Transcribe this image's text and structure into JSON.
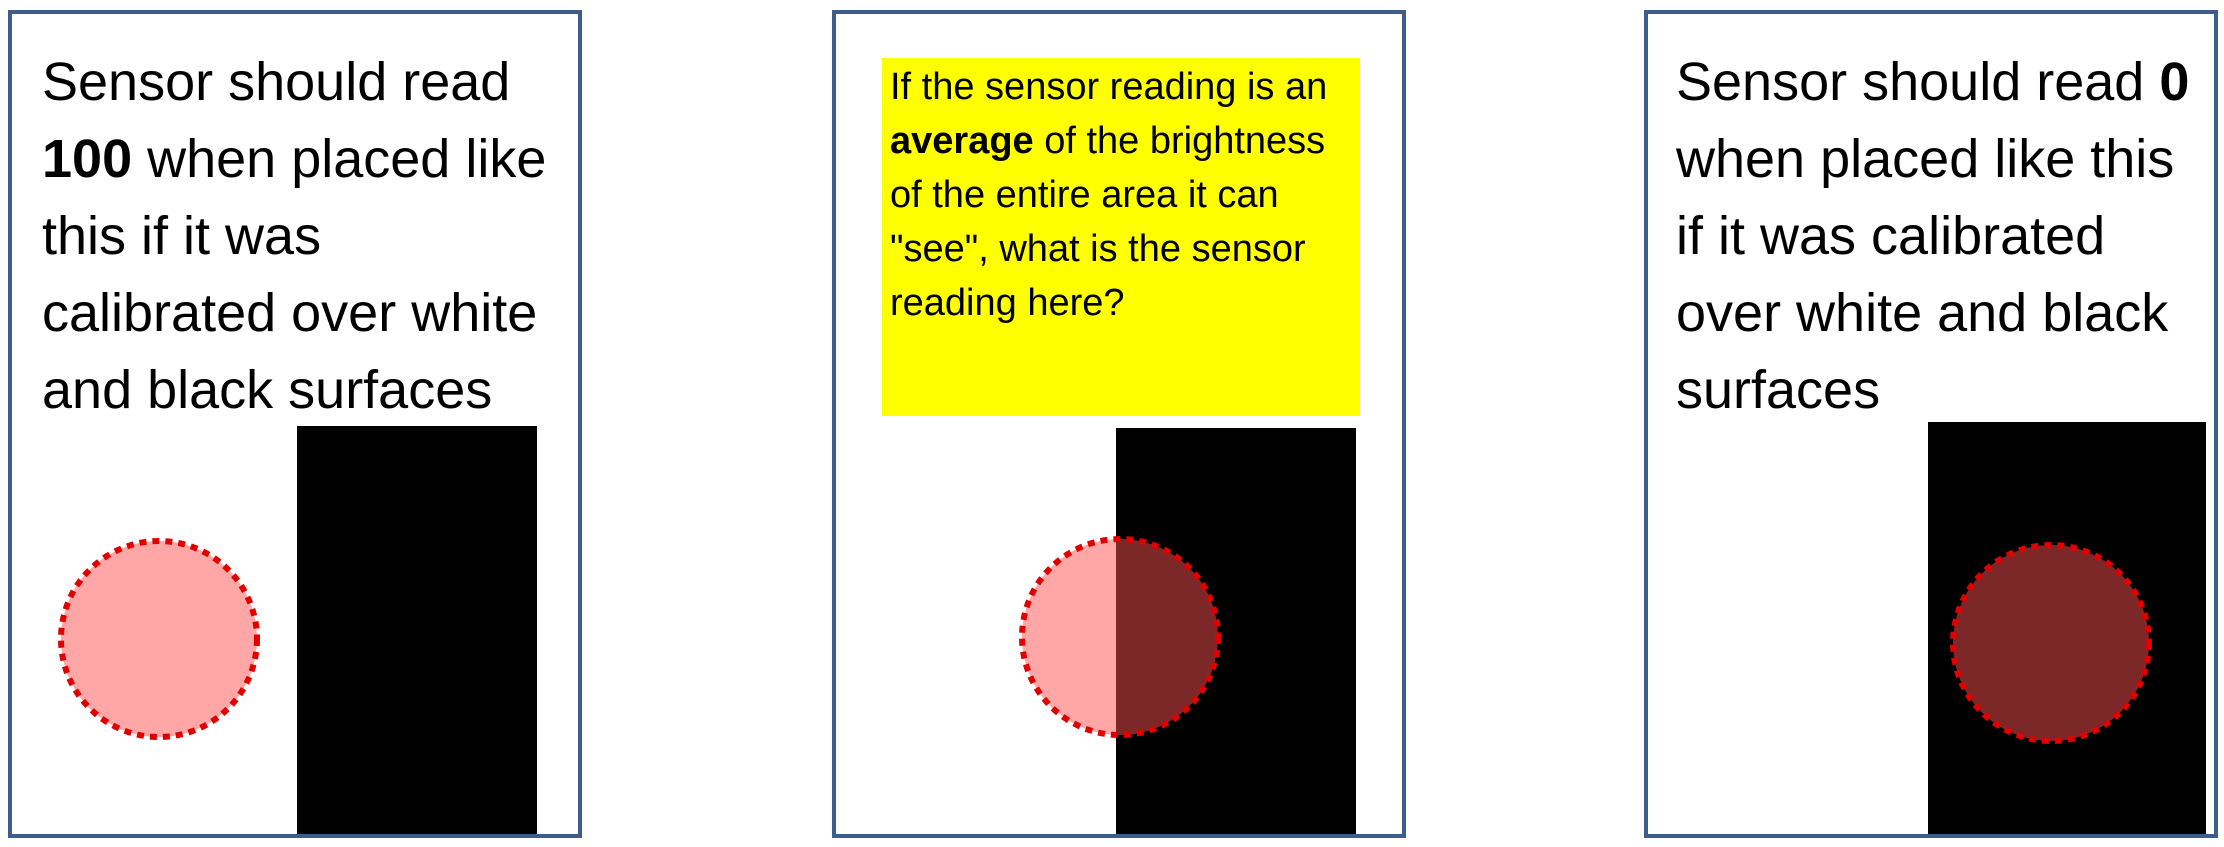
{
  "panels": [
    {
      "text_before": "Sensor should read ",
      "bold": "100",
      "text_after": " when  placed like this if it was calibrated over white and black surfaces"
    },
    {
      "callout_before": "If the sensor reading is an ",
      "bold": "average",
      "callout_after": " of the brightness of the entire area it can \"see\", what is the sensor reading here?"
    },
    {
      "text_before": "Sensor should read ",
      "bold": "0",
      "text_after": " when placed like this if it was calibrated over white and black surfaces"
    }
  ],
  "colors": {
    "panel_border": "#3d5d8c",
    "callout_bg": "#ffff00",
    "sensor_on_white": "#ffa6a6",
    "sensor_on_black": "#7c2828",
    "sensor_outline": "#e00000"
  }
}
